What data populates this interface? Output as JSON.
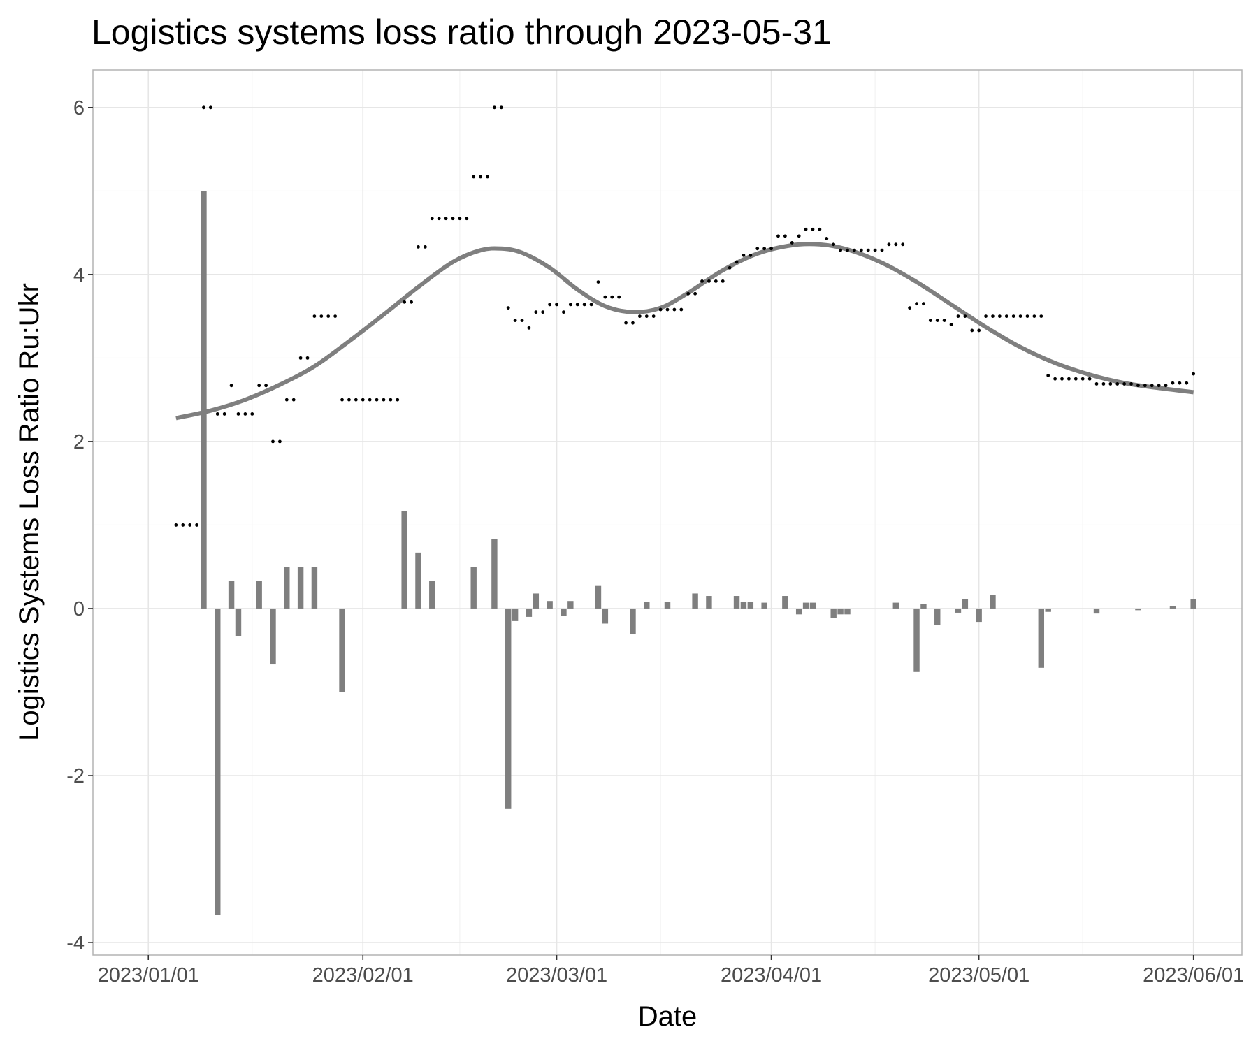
{
  "chart_data": {
    "type": "bar",
    "title": "Logistics systems loss ratio through 2023-05-31",
    "xlabel": "Date",
    "ylabel": "Logistics Systems Loss Ratio Ru:Ukr",
    "x_tick_labels": [
      "2023/01/01",
      "2023/02/01",
      "2023/03/01",
      "2023/04/01",
      "2023/05/01",
      "2023/06/01"
    ],
    "x_tick_dates": [
      "2023-01-01",
      "2023-02-01",
      "2023-03-01",
      "2023-04-01",
      "2023-05-01",
      "2023-06-01"
    ],
    "x_minor_dates": [
      "2023-01-16",
      "2023-02-15",
      "2023-03-16",
      "2023-04-16",
      "2023-05-16"
    ],
    "xlim": [
      "2022-12-24",
      "2023-06-08"
    ],
    "y_ticks": [
      -4,
      -2,
      0,
      2,
      4,
      6
    ],
    "y_tick_labels": [
      "-4",
      "-2",
      "0",
      "2",
      "4",
      "6"
    ],
    "ylim": [
      -4.15,
      6.45
    ],
    "grid": true,
    "colors": {
      "bars": "#7f7f7f",
      "points": "#000000",
      "trend": "#7f7f7f",
      "grid": "#e6e6e6",
      "panel_border": "#b3b3b3",
      "tick_label": "#4d4d4d"
    },
    "series": [
      {
        "type": "bar",
        "points": [
          [
            "2023-01-09",
            5.0
          ],
          [
            "2023-01-11",
            -3.67
          ],
          [
            "2023-01-13",
            0.33
          ],
          [
            "2023-01-14",
            -0.33
          ],
          [
            "2023-01-17",
            0.33
          ],
          [
            "2023-01-19",
            -0.67
          ],
          [
            "2023-01-21",
            0.5
          ],
          [
            "2023-01-23",
            0.5
          ],
          [
            "2023-01-25",
            0.5
          ],
          [
            "2023-01-29",
            -1.0
          ],
          [
            "2023-02-07",
            1.17
          ],
          [
            "2023-02-09",
            0.67
          ],
          [
            "2023-02-11",
            0.33
          ],
          [
            "2023-02-17",
            0.5
          ],
          [
            "2023-02-20",
            0.83
          ],
          [
            "2023-02-22",
            -2.4
          ],
          [
            "2023-02-23",
            -0.15
          ],
          [
            "2023-02-25",
            -0.1
          ],
          [
            "2023-02-26",
            0.18
          ],
          [
            "2023-02-28",
            0.09
          ],
          [
            "2023-03-02",
            -0.09
          ],
          [
            "2023-03-03",
            0.09
          ],
          [
            "2023-03-07",
            0.27
          ],
          [
            "2023-03-08",
            -0.18
          ],
          [
            "2023-03-12",
            -0.31
          ],
          [
            "2023-03-14",
            0.08
          ],
          [
            "2023-03-17",
            0.08
          ],
          [
            "2023-03-21",
            0.18
          ],
          [
            "2023-03-23",
            0.15
          ],
          [
            "2023-03-27",
            0.15
          ],
          [
            "2023-03-28",
            0.08
          ],
          [
            "2023-03-29",
            0.08
          ],
          [
            "2023-03-31",
            0.07
          ],
          [
            "2023-04-03",
            0.15
          ],
          [
            "2023-04-05",
            -0.07
          ],
          [
            "2023-04-06",
            0.07
          ],
          [
            "2023-04-07",
            0.07
          ],
          [
            "2023-04-10",
            -0.11
          ],
          [
            "2023-04-11",
            -0.07
          ],
          [
            "2023-04-12",
            -0.07
          ],
          [
            "2023-04-19",
            0.07
          ],
          [
            "2023-04-22",
            -0.76
          ],
          [
            "2023-04-23",
            0.05
          ],
          [
            "2023-04-25",
            -0.2
          ],
          [
            "2023-04-28",
            -0.05
          ],
          [
            "2023-04-29",
            0.11
          ],
          [
            "2023-05-01",
            -0.16
          ],
          [
            "2023-05-03",
            0.16
          ],
          [
            "2023-05-10",
            -0.71
          ],
          [
            "2023-05-11",
            -0.04
          ],
          [
            "2023-05-18",
            -0.06
          ],
          [
            "2023-05-24",
            -0.02
          ],
          [
            "2023-05-29",
            0.03
          ],
          [
            "2023-06-01",
            0.11
          ]
        ]
      },
      {
        "type": "scatter",
        "points": [
          [
            "2023-01-05",
            1.0
          ],
          [
            "2023-01-06",
            1.0
          ],
          [
            "2023-01-07",
            1.0
          ],
          [
            "2023-01-08",
            1.0
          ],
          [
            "2023-01-09",
            6.0
          ],
          [
            "2023-01-10",
            6.0
          ],
          [
            "2023-01-11",
            2.33
          ],
          [
            "2023-01-12",
            2.33
          ],
          [
            "2023-01-13",
            2.67
          ],
          [
            "2023-01-14",
            2.33
          ],
          [
            "2023-01-15",
            2.33
          ],
          [
            "2023-01-16",
            2.33
          ],
          [
            "2023-01-17",
            2.67
          ],
          [
            "2023-01-18",
            2.67
          ],
          [
            "2023-01-19",
            2.0
          ],
          [
            "2023-01-20",
            2.0
          ],
          [
            "2023-01-21",
            2.5
          ],
          [
            "2023-01-22",
            2.5
          ],
          [
            "2023-01-23",
            3.0
          ],
          [
            "2023-01-24",
            3.0
          ],
          [
            "2023-01-25",
            3.5
          ],
          [
            "2023-01-26",
            3.5
          ],
          [
            "2023-01-27",
            3.5
          ],
          [
            "2023-01-28",
            3.5
          ],
          [
            "2023-01-29",
            2.5
          ],
          [
            "2023-01-30",
            2.5
          ],
          [
            "2023-01-31",
            2.5
          ],
          [
            "2023-02-01",
            2.5
          ],
          [
            "2023-02-02",
            2.5
          ],
          [
            "2023-02-03",
            2.5
          ],
          [
            "2023-02-04",
            2.5
          ],
          [
            "2023-02-05",
            2.5
          ],
          [
            "2023-02-06",
            2.5
          ],
          [
            "2023-02-07",
            3.67
          ],
          [
            "2023-02-08",
            3.67
          ],
          [
            "2023-02-09",
            4.33
          ],
          [
            "2023-02-10",
            4.33
          ],
          [
            "2023-02-11",
            4.67
          ],
          [
            "2023-02-12",
            4.67
          ],
          [
            "2023-02-13",
            4.67
          ],
          [
            "2023-02-14",
            4.67
          ],
          [
            "2023-02-15",
            4.67
          ],
          [
            "2023-02-16",
            4.67
          ],
          [
            "2023-02-17",
            5.17
          ],
          [
            "2023-02-18",
            5.17
          ],
          [
            "2023-02-19",
            5.17
          ],
          [
            "2023-02-20",
            6.0
          ],
          [
            "2023-02-21",
            6.0
          ],
          [
            "2023-02-22",
            3.6
          ],
          [
            "2023-02-23",
            3.45
          ],
          [
            "2023-02-24",
            3.45
          ],
          [
            "2023-02-25",
            3.36
          ],
          [
            "2023-02-26",
            3.55
          ],
          [
            "2023-02-27",
            3.55
          ],
          [
            "2023-02-28",
            3.64
          ],
          [
            "2023-03-01",
            3.64
          ],
          [
            "2023-03-02",
            3.55
          ],
          [
            "2023-03-03",
            3.64
          ],
          [
            "2023-03-04",
            3.64
          ],
          [
            "2023-03-05",
            3.64
          ],
          [
            "2023-03-06",
            3.64
          ],
          [
            "2023-03-07",
            3.91
          ],
          [
            "2023-03-08",
            3.73
          ],
          [
            "2023-03-09",
            3.73
          ],
          [
            "2023-03-10",
            3.73
          ],
          [
            "2023-03-11",
            3.42
          ],
          [
            "2023-03-12",
            3.42
          ],
          [
            "2023-03-13",
            3.5
          ],
          [
            "2023-03-14",
            3.5
          ],
          [
            "2023-03-15",
            3.5
          ],
          [
            "2023-03-16",
            3.58
          ],
          [
            "2023-03-17",
            3.58
          ],
          [
            "2023-03-18",
            3.58
          ],
          [
            "2023-03-19",
            3.58
          ],
          [
            "2023-03-20",
            3.77
          ],
          [
            "2023-03-21",
            3.77
          ],
          [
            "2023-03-22",
            3.92
          ],
          [
            "2023-03-23",
            3.92
          ],
          [
            "2023-03-24",
            3.92
          ],
          [
            "2023-03-25",
            3.92
          ],
          [
            "2023-03-26",
            4.08
          ],
          [
            "2023-03-27",
            4.15
          ],
          [
            "2023-03-28",
            4.23
          ],
          [
            "2023-03-29",
            4.23
          ],
          [
            "2023-03-30",
            4.31
          ],
          [
            "2023-03-31",
            4.31
          ],
          [
            "2023-04-01",
            4.31
          ],
          [
            "2023-04-02",
            4.46
          ],
          [
            "2023-04-03",
            4.46
          ],
          [
            "2023-04-04",
            4.38
          ],
          [
            "2023-04-05",
            4.46
          ],
          [
            "2023-04-06",
            4.54
          ],
          [
            "2023-04-07",
            4.54
          ],
          [
            "2023-04-08",
            4.54
          ],
          [
            "2023-04-09",
            4.43
          ],
          [
            "2023-04-10",
            4.36
          ],
          [
            "2023-04-11",
            4.29
          ],
          [
            "2023-04-12",
            4.29
          ],
          [
            "2023-04-13",
            4.29
          ],
          [
            "2023-04-14",
            4.29
          ],
          [
            "2023-04-15",
            4.29
          ],
          [
            "2023-04-16",
            4.29
          ],
          [
            "2023-04-17",
            4.29
          ],
          [
            "2023-04-18",
            4.36
          ],
          [
            "2023-04-19",
            4.36
          ],
          [
            "2023-04-20",
            4.36
          ],
          [
            "2023-04-21",
            3.6
          ],
          [
            "2023-04-22",
            3.65
          ],
          [
            "2023-04-23",
            3.65
          ],
          [
            "2023-04-24",
            3.45
          ],
          [
            "2023-04-25",
            3.45
          ],
          [
            "2023-04-26",
            3.45
          ],
          [
            "2023-04-27",
            3.4
          ],
          [
            "2023-04-28",
            3.5
          ],
          [
            "2023-04-29",
            3.5
          ],
          [
            "2023-04-30",
            3.33
          ],
          [
            "2023-05-01",
            3.33
          ],
          [
            "2023-05-02",
            3.5
          ],
          [
            "2023-05-03",
            3.5
          ],
          [
            "2023-05-04",
            3.5
          ],
          [
            "2023-05-05",
            3.5
          ],
          [
            "2023-05-06",
            3.5
          ],
          [
            "2023-05-07",
            3.5
          ],
          [
            "2023-05-08",
            3.5
          ],
          [
            "2023-05-09",
            3.5
          ],
          [
            "2023-05-10",
            3.5
          ],
          [
            "2023-05-11",
            2.79
          ],
          [
            "2023-05-12",
            2.75
          ],
          [
            "2023-05-13",
            2.75
          ],
          [
            "2023-05-14",
            2.75
          ],
          [
            "2023-05-15",
            2.75
          ],
          [
            "2023-05-16",
            2.75
          ],
          [
            "2023-05-17",
            2.75
          ],
          [
            "2023-05-18",
            2.69
          ],
          [
            "2023-05-19",
            2.69
          ],
          [
            "2023-05-20",
            2.69
          ],
          [
            "2023-05-21",
            2.69
          ],
          [
            "2023-05-22",
            2.69
          ],
          [
            "2023-05-23",
            2.69
          ],
          [
            "2023-05-24",
            2.67
          ],
          [
            "2023-05-25",
            2.67
          ],
          [
            "2023-05-26",
            2.67
          ],
          [
            "2023-05-27",
            2.67
          ],
          [
            "2023-05-28",
            2.67
          ],
          [
            "2023-05-29",
            2.7
          ],
          [
            "2023-05-30",
            2.7
          ],
          [
            "2023-05-31",
            2.7
          ],
          [
            "2023-06-01",
            2.81
          ]
        ]
      },
      {
        "type": "line",
        "points": [
          [
            "2023-01-05",
            2.28
          ],
          [
            "2023-01-10",
            2.37
          ],
          [
            "2023-01-15",
            2.5
          ],
          [
            "2023-01-20",
            2.68
          ],
          [
            "2023-01-25",
            2.9
          ],
          [
            "2023-01-30",
            3.2
          ],
          [
            "2023-02-04",
            3.52
          ],
          [
            "2023-02-09",
            3.85
          ],
          [
            "2023-02-14",
            4.15
          ],
          [
            "2023-02-18",
            4.29
          ],
          [
            "2023-02-21",
            4.31
          ],
          [
            "2023-02-24",
            4.26
          ],
          [
            "2023-02-28",
            4.08
          ],
          [
            "2023-03-04",
            3.82
          ],
          [
            "2023-03-08",
            3.62
          ],
          [
            "2023-03-12",
            3.55
          ],
          [
            "2023-03-16",
            3.6
          ],
          [
            "2023-03-20",
            3.78
          ],
          [
            "2023-03-25",
            4.05
          ],
          [
            "2023-03-30",
            4.25
          ],
          [
            "2023-04-04",
            4.35
          ],
          [
            "2023-04-08",
            4.36
          ],
          [
            "2023-04-12",
            4.3
          ],
          [
            "2023-04-17",
            4.14
          ],
          [
            "2023-04-22",
            3.91
          ],
          [
            "2023-04-27",
            3.64
          ],
          [
            "2023-05-02",
            3.37
          ],
          [
            "2023-05-07",
            3.13
          ],
          [
            "2023-05-12",
            2.94
          ],
          [
            "2023-05-17",
            2.8
          ],
          [
            "2023-05-22",
            2.7
          ],
          [
            "2023-05-27",
            2.64
          ],
          [
            "2023-06-01",
            2.59
          ]
        ]
      }
    ]
  }
}
